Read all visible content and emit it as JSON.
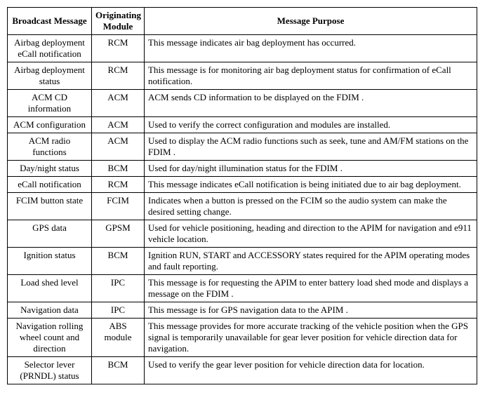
{
  "headers": {
    "col1": "Broadcast Message",
    "col2": "Originating Module",
    "col3": "Message Purpose"
  },
  "rows": [
    {
      "msg": "Airbag deployment eCall notification",
      "mod": "RCM",
      "purpose": "This message indicates air bag deployment has occurred."
    },
    {
      "msg": "Airbag deployment status",
      "mod": "RCM",
      "purpose": "This message is for monitoring air bag deployment status for confirmation of eCall notification."
    },
    {
      "msg": "ACM CD information",
      "mod": "ACM",
      "purpose": "ACM sends CD information to be displayed on the FDIM ."
    },
    {
      "msg": "ACM configuration",
      "mod": "ACM",
      "purpose": "Used to verify the correct configuration and modules are installed."
    },
    {
      "msg": "ACM radio functions",
      "mod": "ACM",
      "purpose": "Used to display the ACM radio functions such as seek, tune and AM/FM stations on the FDIM ."
    },
    {
      "msg": "Day/night status",
      "mod": "BCM",
      "purpose": "Used for day/night illumination status for the FDIM ."
    },
    {
      "msg": "eCall notification",
      "mod": "RCM",
      "purpose": "This message indicates eCall notification is being initiated due to air bag deployment."
    },
    {
      "msg": "FCIM button state",
      "mod": "FCIM",
      "purpose": "Indicates when a button is pressed on the FCIM so the audio system can make the desired setting change."
    },
    {
      "msg": "GPS data",
      "mod": "GPSM",
      "purpose": "Used for vehicle positioning, heading and direction to the APIM for navigation and e911 vehicle location."
    },
    {
      "msg": "Ignition status",
      "mod": "BCM",
      "purpose": "Ignition RUN, START and ACCESSORY states required for the APIM operating modes and fault reporting."
    },
    {
      "msg": "Load shed level",
      "mod": "IPC",
      "purpose": "This message is for requesting the APIM to enter battery load shed mode and displays a message on the FDIM ."
    },
    {
      "msg": "Navigation data",
      "mod": "IPC",
      "purpose": "This message is for GPS navigation data to the APIM ."
    },
    {
      "msg": "Navigation rolling wheel count and direction",
      "mod": "ABS module",
      "purpose": "This message provides for more accurate tracking of the vehicle position when the GPS signal is temporarily unavailable for gear lever position for vehicle direction data for navigation."
    },
    {
      "msg": "Selector lever (PRNDL) status",
      "mod": "BCM",
      "purpose": "Used to verify the gear lever position for vehicle direction data for location."
    }
  ]
}
